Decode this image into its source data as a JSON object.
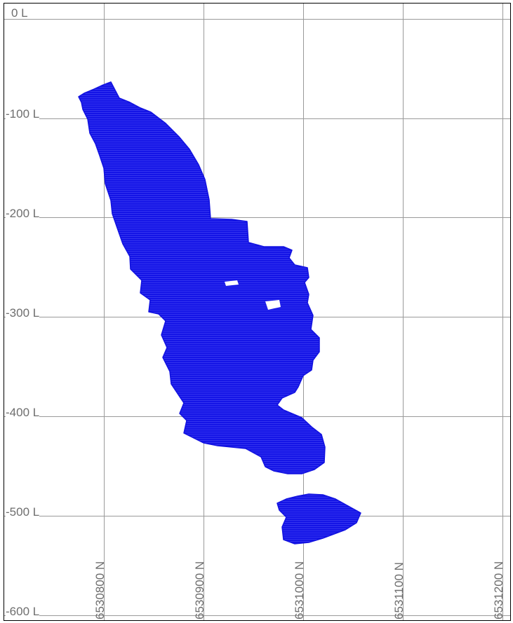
{
  "map": {
    "level_labels": [
      "0 L",
      "-100 L",
      "-200 L",
      "-300 L",
      "-400 L",
      "-500 L",
      "-600 L"
    ],
    "northing_labels": [
      "6530800 N",
      "6530900 N",
      "6531000 N",
      "6531100 N",
      "6531200 N"
    ],
    "colors": {
      "orebody": "#1212e0",
      "grid": "#9a9a9a",
      "label": "#6e6e6e",
      "frame": "#000000"
    }
  }
}
